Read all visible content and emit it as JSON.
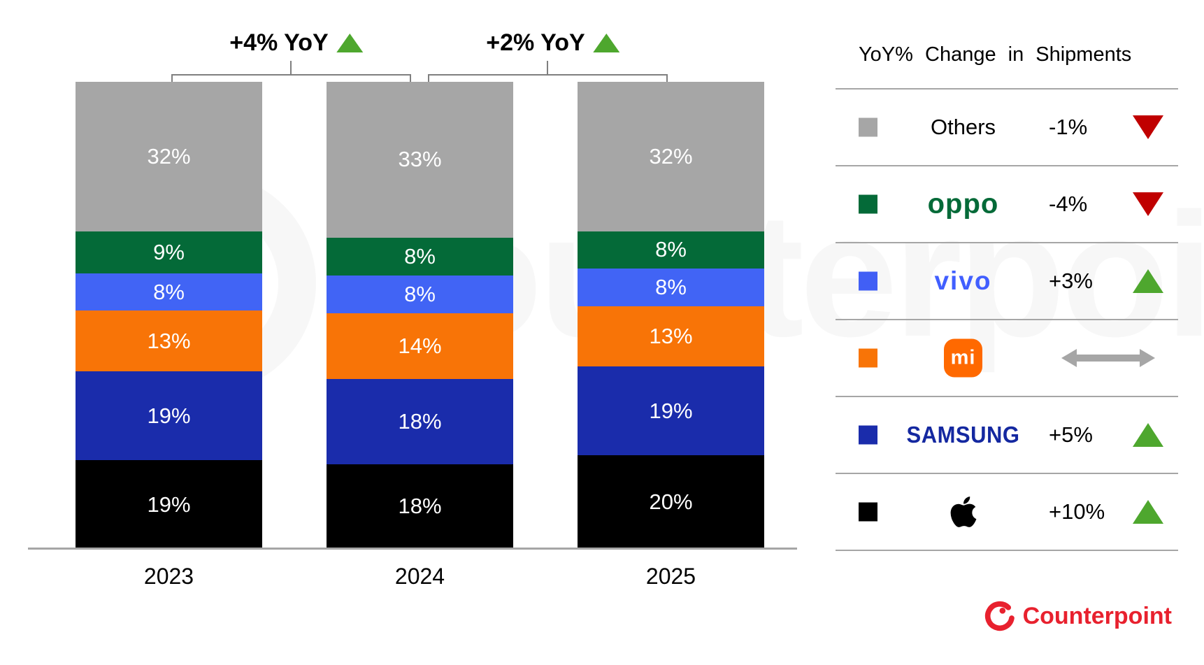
{
  "annotations": [
    {
      "label": "+4% YoY",
      "direction": "up"
    },
    {
      "label": "+2% YoY",
      "direction": "up"
    }
  ],
  "chart_data": {
    "type": "bar",
    "stacked": true,
    "unit": "%",
    "categories": [
      "2023",
      "2024",
      "2025"
    ],
    "series": [
      {
        "name": "Others",
        "color": "#a6a6a6",
        "values": [
          32,
          33,
          32
        ]
      },
      {
        "name": "OPPO",
        "color": "#046a38",
        "values": [
          9,
          8,
          8
        ]
      },
      {
        "name": "vivo",
        "color": "#4164f5",
        "values": [
          8,
          8,
          8
        ]
      },
      {
        "name": "Xiaomi",
        "color": "#f87407",
        "values": [
          13,
          14,
          13
        ]
      },
      {
        "name": "Samsung",
        "color": "#1a2cab",
        "values": [
          19,
          18,
          19
        ]
      },
      {
        "name": "Apple",
        "color": "#000000",
        "values": [
          19,
          18,
          20
        ]
      }
    ],
    "ylim": [
      0,
      100
    ],
    "grid": false,
    "legend_position": "right",
    "yoy_change_labels": [
      "+4% YoY",
      "+2% YoY"
    ]
  },
  "legend": {
    "title": "YoY% Change in Shipments",
    "rows": [
      {
        "brand": "Others",
        "logo": "text",
        "swatch": "#a6a6a6",
        "change": "-1%",
        "direction": "down"
      },
      {
        "brand": "oppo",
        "logo": "oppo",
        "swatch": "#046a38",
        "change": "-4%",
        "direction": "down"
      },
      {
        "brand": "vivo",
        "logo": "vivo",
        "swatch": "#415ff5",
        "change": "+3%",
        "direction": "up"
      },
      {
        "brand": "mi",
        "logo": "mi",
        "swatch": "#f87407",
        "change": "",
        "direction": "flat"
      },
      {
        "brand": "SAMSUNG",
        "logo": "samsung",
        "swatch": "#1a2cab",
        "change": "+5%",
        "direction": "up"
      },
      {
        "brand": "Apple",
        "logo": "apple",
        "swatch": "#000000",
        "change": "+10%",
        "direction": "up"
      }
    ]
  },
  "colors": {
    "up": "#4ea72e",
    "down": "#c00000",
    "flat": "#a6a6a6",
    "oppo_logo": "#046a38",
    "vivo_logo": "#415fff",
    "mi_logo": "#ff6900",
    "samsung_logo": "#1428a0",
    "counterpoint_red": "#e8212e",
    "bracket_line": "#7f7f7f",
    "axis_line": "#a6a6a6"
  },
  "branding": {
    "name": "Counterpoint"
  },
  "watermark": {
    "text": "counterpoint"
  }
}
